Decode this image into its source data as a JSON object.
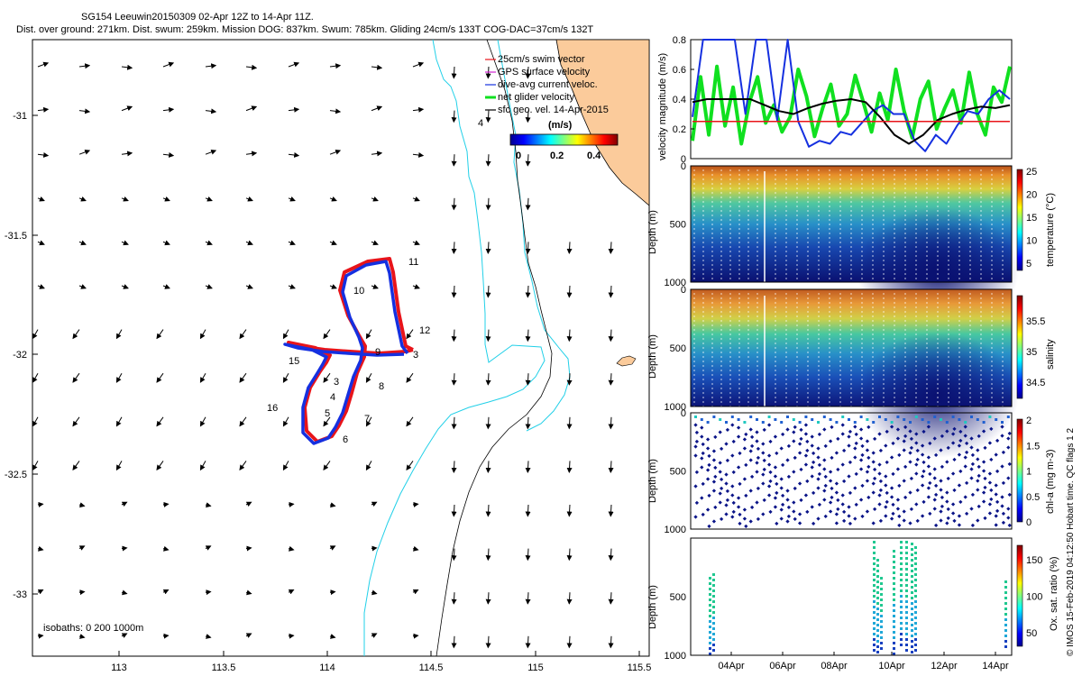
{
  "header": {
    "line1": "SG154 Leeuwin20150309 02-Apr 12Z to 14-Apr 11Z.",
    "line2": "Dist. over ground: 271km. Dist. swum: 259km. Mission DOG: 837km. Swum: 785km. Gliding 24cm/s 133T COG-DAC=37cm/s 132T"
  },
  "credit": "© IMOS 15-Feb-2019 04:12:50 Hobart time. QC flags 1  2",
  "colors": {
    "land": "#fbcb9b",
    "coast_isobath": "#22d0e8",
    "isobath_1000": "#000000",
    "track_red": "#e8141a",
    "track_blue": "#1530e0",
    "net_green": "#10e020",
    "magenta": "#d020d0"
  },
  "map_legend": {
    "items": [
      {
        "label": "25cm/s swim vector",
        "icon": "red-arrow-icon"
      },
      {
        "label": "GPS surface velocity",
        "icon": "magenta-arrow-icon"
      },
      {
        "label": "dive-avg current veloc.",
        "icon": "blue-arrow-icon"
      },
      {
        "label": "net glider velocity",
        "icon": "green-dash-icon"
      },
      {
        "label": "sfc geo. vel. 14-Apr-2015",
        "icon": "black-arrow-icon"
      }
    ],
    "colorbar_title": "(m/s)",
    "colorbar_ticks": [
      "0",
      "0.2",
      "0.4"
    ]
  },
  "isobath_label": "isobaths: 0   200  1000m",
  "day_labels": [
    "3",
    "4",
    "5",
    "6",
    "7",
    "8",
    "9",
    "3",
    "10",
    "11",
    "12",
    "15",
    "16",
    "4"
  ],
  "chart_data": [
    {
      "type": "map",
      "xticks": [
        "113",
        "113.5",
        "114",
        "114.5",
        "115",
        "115.5"
      ],
      "yticks": [
        "-31",
        "-31.5",
        "-32",
        "-32.5",
        "-33"
      ],
      "xlim": [
        112.58,
        115.6
      ],
      "ylim": [
        -33.27,
        -30.72
      ]
    },
    {
      "type": "line",
      "ylabel": "velocity magnitude (m/s)",
      "ylim": [
        0,
        0.8
      ],
      "yticks": [
        "0",
        "0.2",
        "0.4",
        "0.6",
        "0.8"
      ],
      "series": [
        {
          "color": "#10e020",
          "values": [
            0.12,
            0.55,
            0.16,
            0.62,
            0.22,
            0.48,
            0.1,
            0.38,
            0.55,
            0.24,
            0.36,
            0.18,
            0.28,
            0.6,
            0.42,
            0.15,
            0.34,
            0.5,
            0.22,
            0.3,
            0.56,
            0.38,
            0.18,
            0.44,
            0.26,
            0.6,
            0.32,
            0.14,
            0.4,
            0.52,
            0.2,
            0.34,
            0.46,
            0.24,
            0.58,
            0.3,
            0.16,
            0.48,
            0.38,
            0.62
          ]
        },
        {
          "color": "#1530e0",
          "values": [
            0.28,
            0.8,
            0.8,
            0.8,
            0.8,
            0.3,
            0.8,
            0.8,
            0.26,
            0.8,
            0.25,
            0.08,
            0.12,
            0.1,
            0.18,
            0.16,
            0.24,
            0.32,
            0.36,
            0.3,
            0.3,
            0.12,
            0.05,
            0.16,
            0.1,
            0.22,
            0.32,
            0.3,
            0.4,
            0.46,
            0.4
          ]
        },
        {
          "color": "#000000",
          "values": [
            0.38,
            0.4,
            0.4,
            0.4,
            0.4,
            0.36,
            0.32,
            0.3,
            0.34,
            0.37,
            0.39,
            0.4,
            0.38,
            0.28,
            0.16,
            0.1,
            0.16,
            0.26,
            0.3,
            0.33,
            0.35,
            0.34,
            0.36
          ]
        },
        {
          "color": "#e8141a",
          "values": [
            0.25,
            0.25
          ]
        }
      ]
    },
    {
      "type": "heatmap",
      "ylabel": "Depth (m)",
      "yticks": [
        "0",
        "500",
        "1000"
      ],
      "cbar_label": "temperature (°C)",
      "cbar_ticks": [
        "25",
        "20",
        "15",
        "10",
        "5"
      ]
    },
    {
      "type": "heatmap",
      "ylabel": "Depth (m)",
      "yticks": [
        "0",
        "500",
        "1000"
      ],
      "cbar_label": "salinity",
      "cbar_ticks": [
        "35.5",
        "35",
        "34.5"
      ]
    },
    {
      "type": "scatter",
      "ylabel": "Depth (m)",
      "yticks": [
        "0",
        "500",
        "1000"
      ],
      "cbar_label": "chl-a (mg m-3)",
      "cbar_ticks": [
        "2",
        "1.5",
        "1",
        "0.5",
        "0"
      ]
    },
    {
      "type": "scatter",
      "ylabel": "Depth (m)",
      "yticks": [
        "500",
        "1000"
      ],
      "cbar_label": "Ox. sat. ratio (%)",
      "cbar_ticks": [
        "150",
        "100",
        "50"
      ],
      "xticks": [
        "04Apr",
        "06Apr",
        "08Apr",
        "10Apr",
        "12Apr",
        "14Apr"
      ]
    }
  ]
}
